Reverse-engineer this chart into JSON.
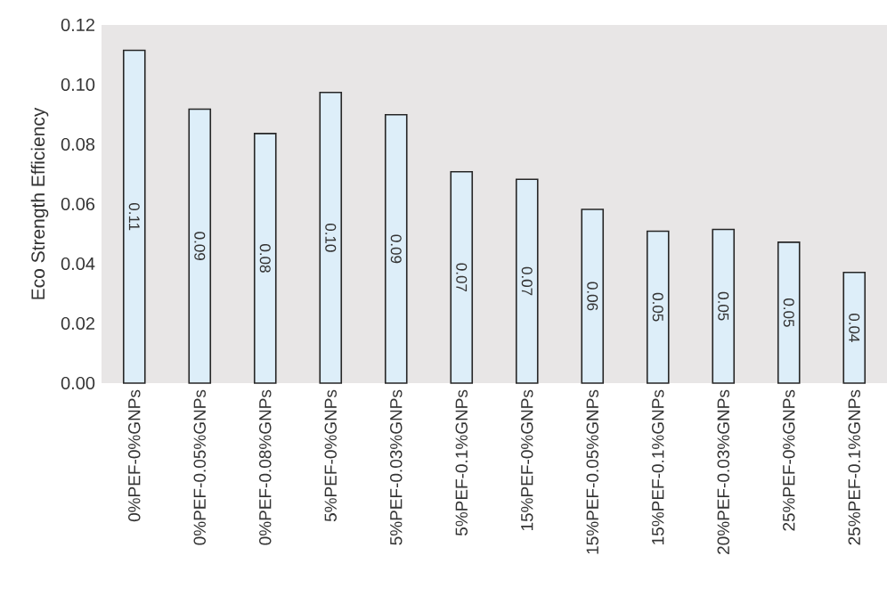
{
  "chart_data": {
    "type": "bar",
    "ylabel": "Eco Strength Efficiency",
    "categories": [
      "0%PEF-0%GNPs",
      "0%PEF-0.05%GNPs",
      "0%PEF-0.08%GNPs",
      "5%PEF-0%GNPs",
      "5%PEF-0.03%GNPs",
      "5%PEF-0.1%GNPs",
      "15%PEF-0%GNPs",
      "15%PEF-0.05%GNPs",
      "15%PEF-0.1%GNPs",
      "20%PEF-0.03%GNPs",
      "25%PEF-0%GNPs",
      "25%PEF-0.1%GNPs"
    ],
    "values": [
      0.1115,
      0.0918,
      0.0836,
      0.0974,
      0.0899,
      0.0708,
      0.0683,
      0.0582,
      0.0509,
      0.0515,
      0.0472,
      0.0371
    ],
    "value_labels": [
      "0.11",
      "0.09",
      "0.08",
      "0.10",
      "0.09",
      "0.07",
      "0.07",
      "0.06",
      "0.05",
      "0.05",
      "0.05",
      "0.04"
    ],
    "color": "#ddeef9",
    "ylim": [
      0,
      0.12
    ],
    "yticks": [
      "0.00",
      "0.02",
      "0.04",
      "0.06",
      "0.08",
      "0.10",
      "0.12"
    ]
  }
}
